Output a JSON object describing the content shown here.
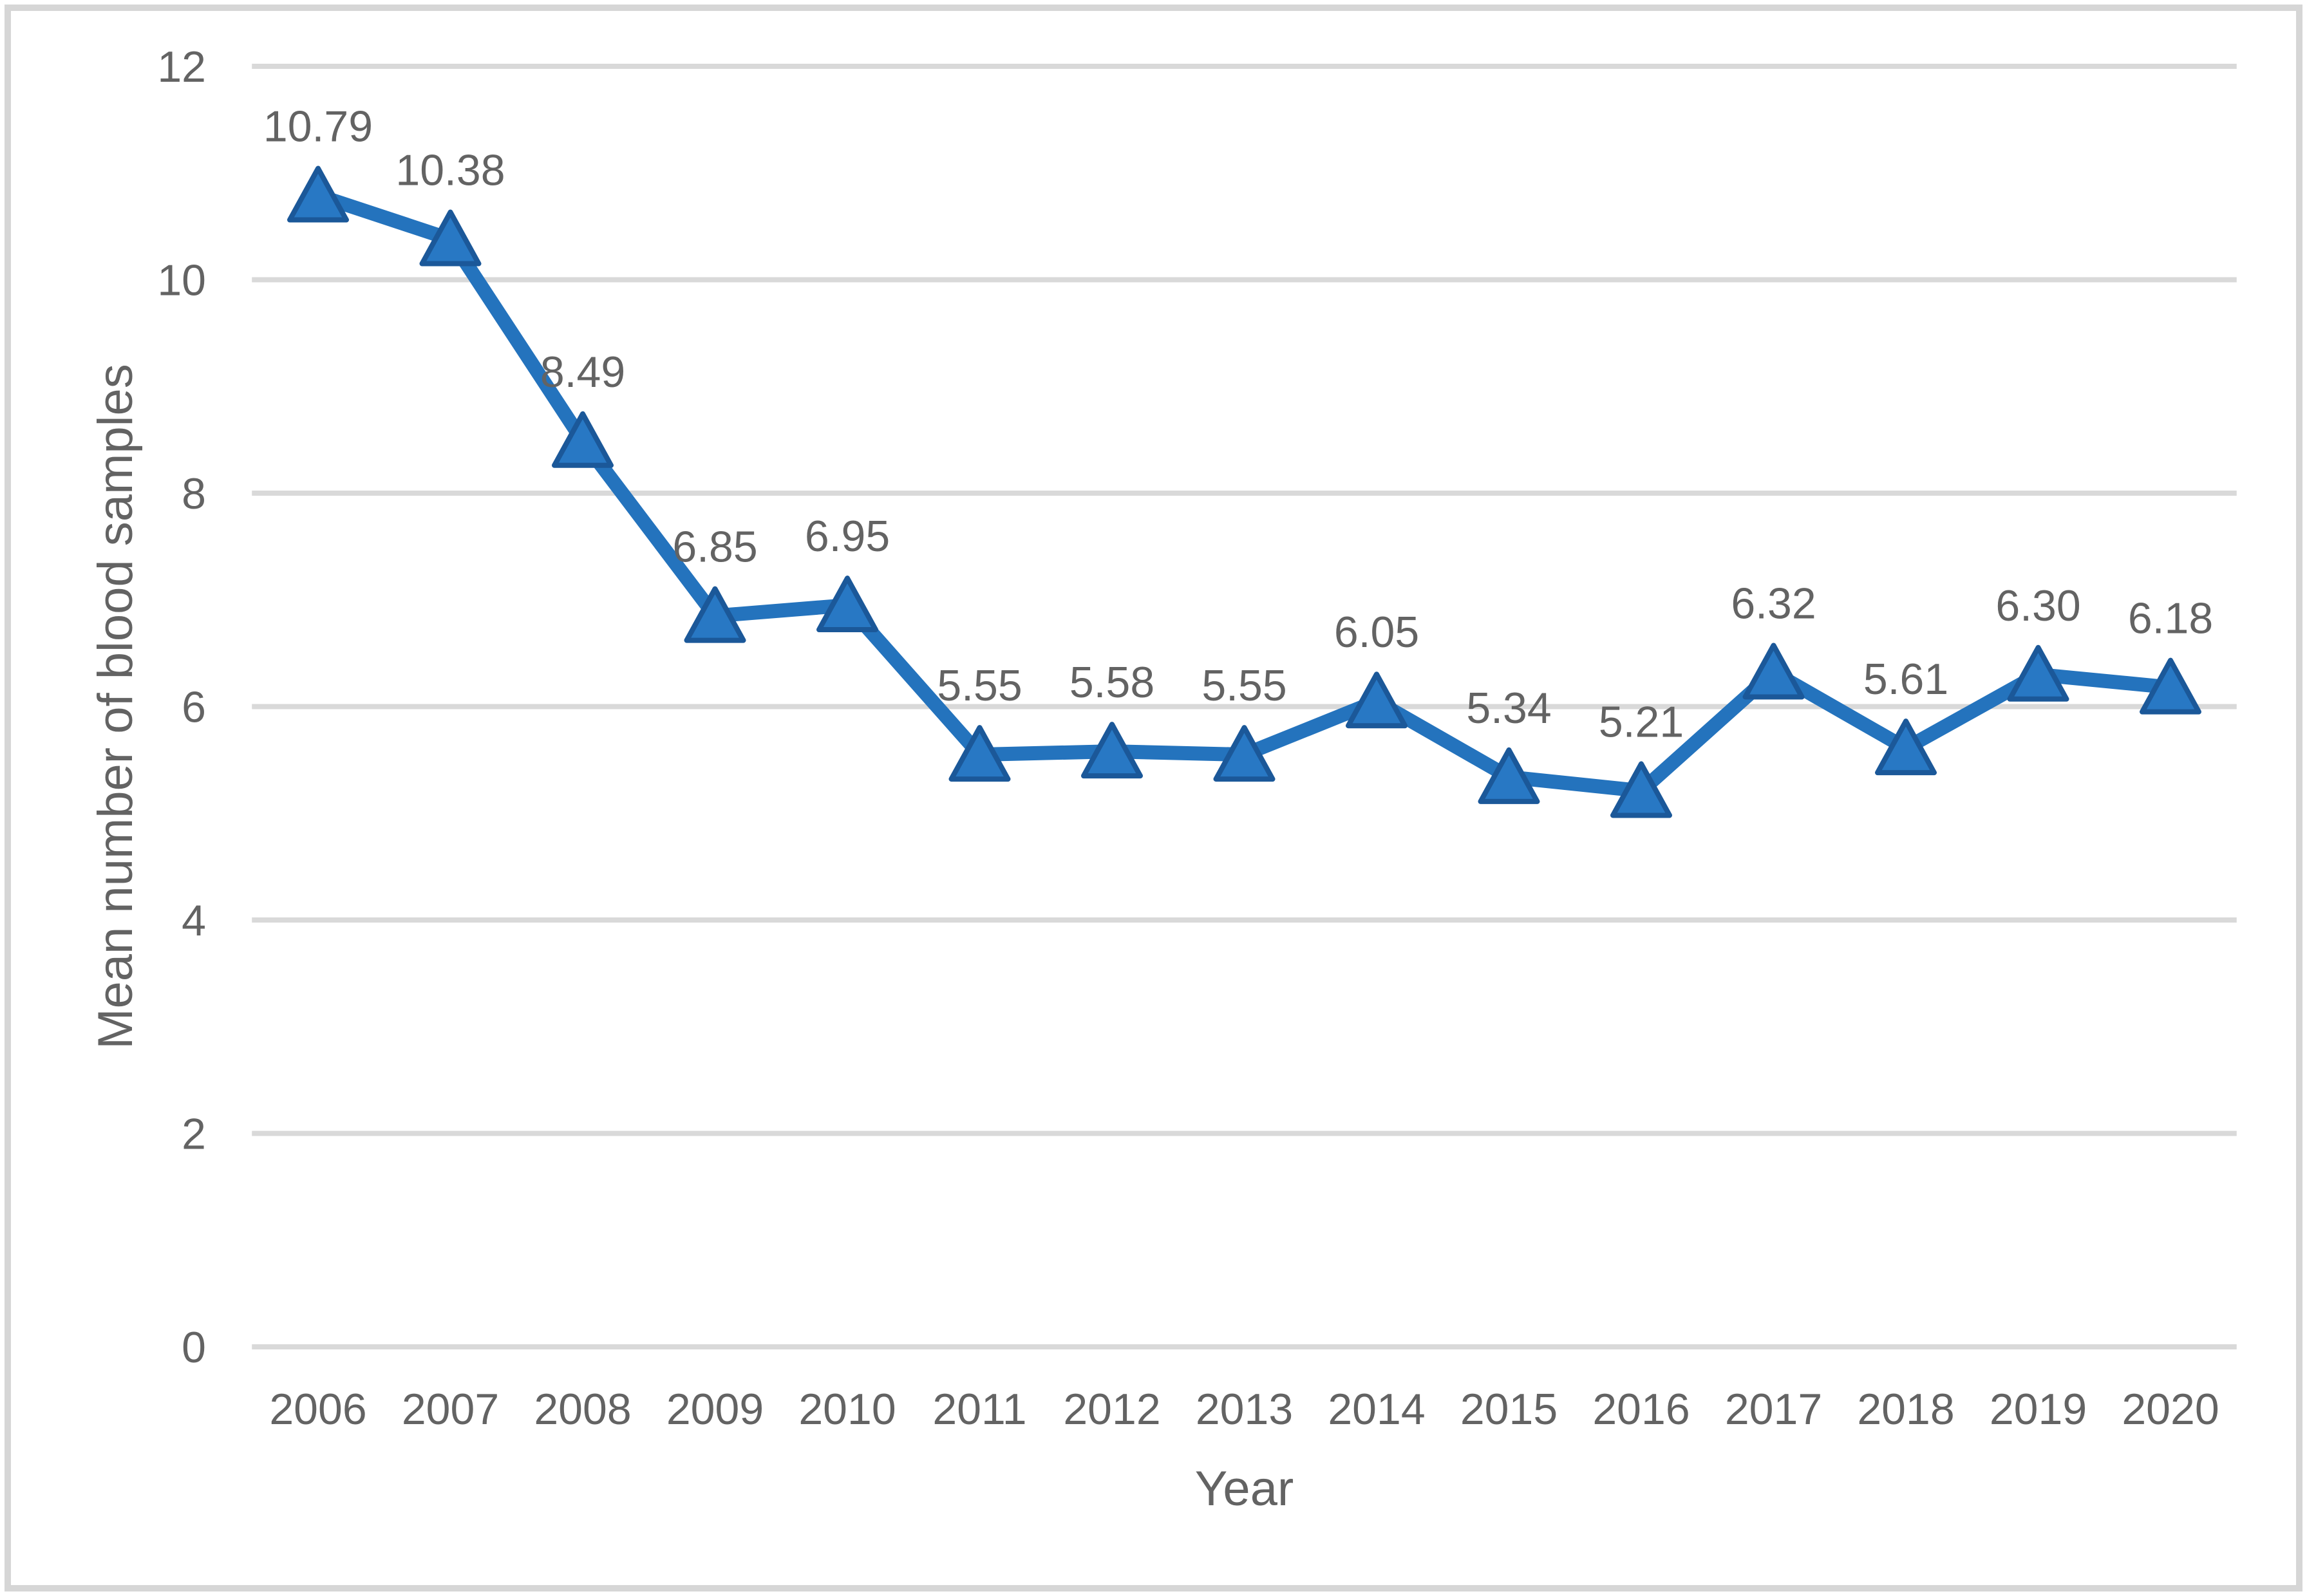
{
  "chart_data": {
    "type": "line",
    "title": "",
    "xlabel": "Year",
    "ylabel": "Mean number of blood samples",
    "categories": [
      "2006",
      "2007",
      "2008",
      "2009",
      "2010",
      "2011",
      "2012",
      "2013",
      "2014",
      "2015",
      "2016",
      "2017",
      "2018",
      "2019",
      "2020"
    ],
    "values": [
      10.79,
      10.38,
      8.49,
      6.85,
      6.95,
      5.55,
      5.58,
      5.55,
      6.05,
      5.34,
      5.21,
      6.32,
      5.61,
      6.3,
      6.18
    ],
    "point_labels": [
      "10.79",
      "10.38",
      "8.49",
      "6.85",
      "6.95",
      "5.55",
      "5.58",
      "5.55",
      "6.05",
      "5.34",
      "5.21",
      "6.32",
      "5.61",
      "6.30",
      "6.18"
    ],
    "ylim": [
      0,
      12
    ],
    "yticks": [
      0,
      2,
      4,
      6,
      8,
      10,
      12
    ],
    "grid": "horizontal",
    "legend": "none",
    "marker": "triangle",
    "colors": {
      "line": "#2473BD",
      "marker_fill": "#2878C4",
      "marker_stroke": "#1B5899",
      "gridline": "#D9D9D9",
      "text": "#636363",
      "frame": "#D6D6D6",
      "background": "#FFFFFF"
    }
  }
}
